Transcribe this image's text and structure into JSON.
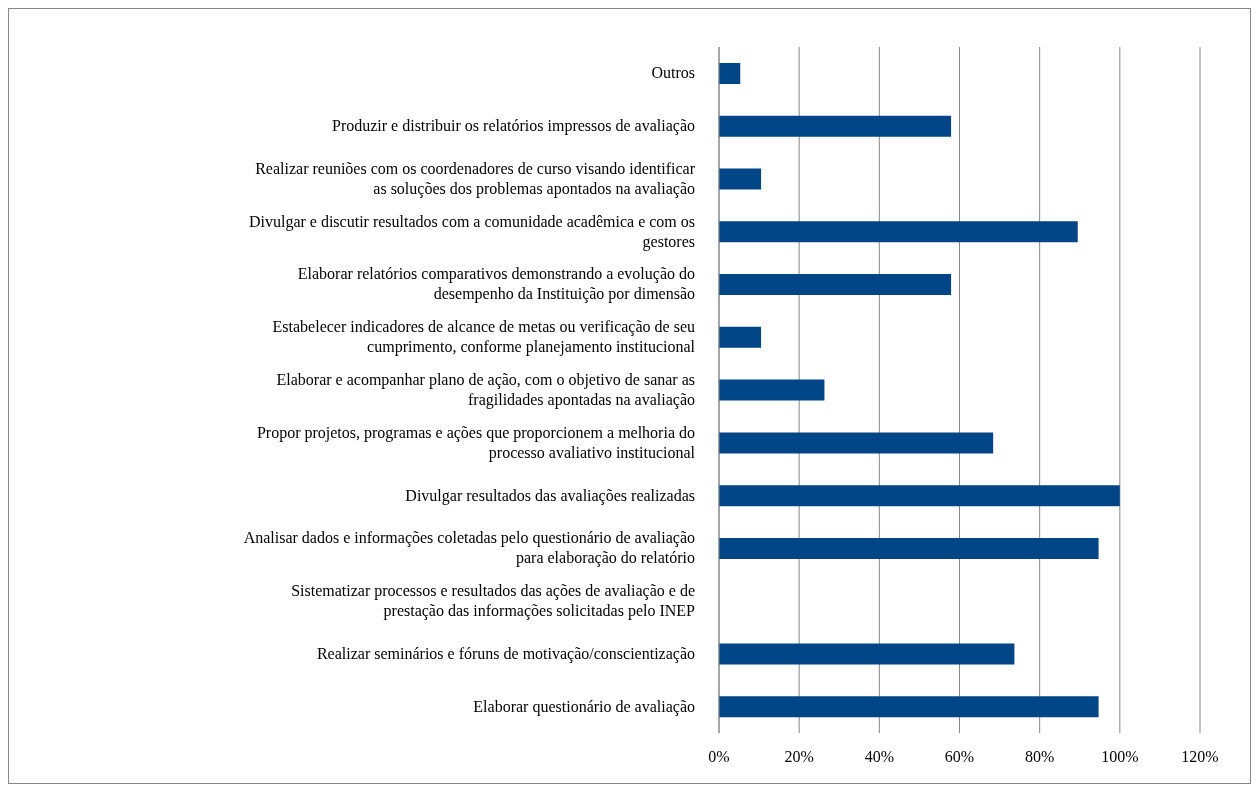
{
  "chart_data": {
    "type": "bar",
    "orientation": "horizontal",
    "categories": [
      "Outros",
      "Produzir e distribuir os relatórios impressos de avaliação",
      "Realizar reuniões com os coordenadores de curso visando identificar\nas soluções dos problemas apontados na avaliação",
      "Divulgar e discutir resultados com a comunidade acadêmica e com os\ngestores",
      "Elaborar relatórios comparativos demonstrando a evolução do\ndesempenho da Instituição por dimensão",
      "Estabelecer indicadores de alcance de metas ou verificação de seu\ncumprimento, conforme planejamento institucional",
      "Elaborar e acompanhar plano de ação, com o objetivo de sanar as\nfragilidades apontadas na avaliação",
      "Propor projetos, programas e ações que proporcionem a melhoria do\nprocesso avaliativo institucional",
      "Divulgar resultados das avaliações realizadas",
      "Analisar dados e informações coletadas pelo questionário de avaliação\npara elaboração do relatório",
      "Sistematizar processos e resultados das ações de avaliação e de\nprestação das informações solicitadas pelo INEP",
      "Realizar seminários e fóruns de motivação/conscientização",
      "Elaborar questionário de avaliação"
    ],
    "values": [
      5.3,
      57.9,
      10.5,
      89.5,
      57.9,
      10.5,
      26.3,
      68.4,
      100,
      94.7,
      0,
      73.7,
      94.7
    ],
    "color": "#004586",
    "xlim": [
      0,
      120
    ],
    "xticks": [
      {
        "value": 0,
        "label": "0%"
      },
      {
        "value": 20,
        "label": "20%"
      },
      {
        "value": 40,
        "label": "40%"
      },
      {
        "value": 60,
        "label": "60%"
      },
      {
        "value": 80,
        "label": "80%"
      },
      {
        "value": 100,
        "label": "100%"
      },
      {
        "value": 120,
        "label": "120%"
      }
    ],
    "grid": "x"
  }
}
